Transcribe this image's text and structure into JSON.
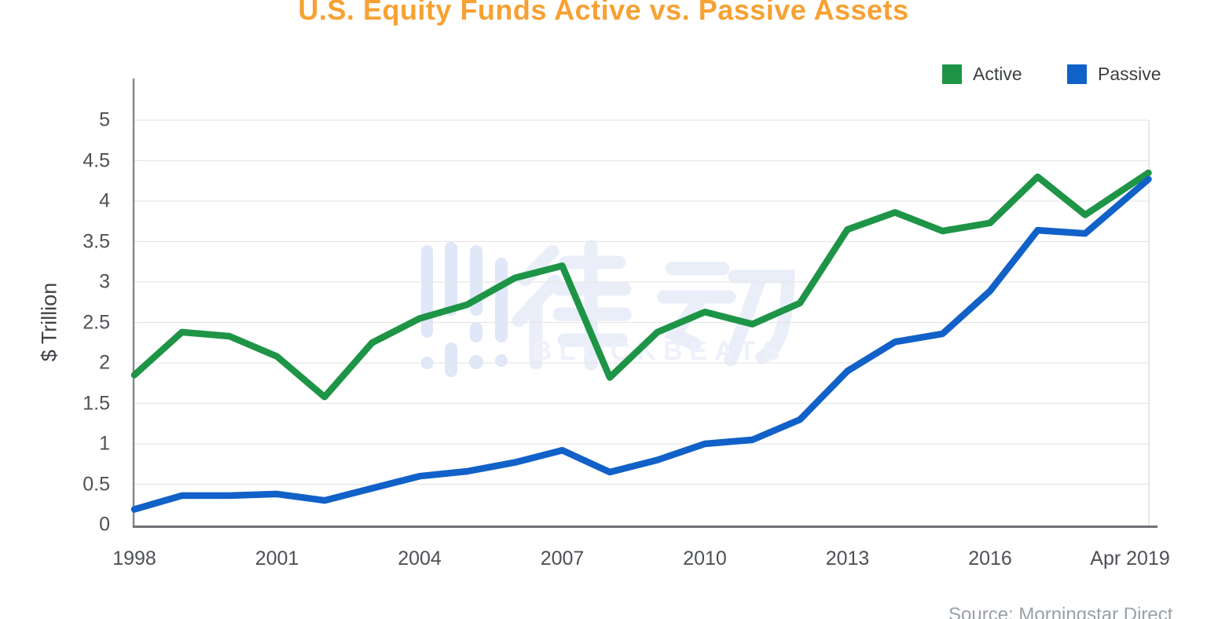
{
  "title": {
    "text": "U.S. Equity Funds Active vs. Passive Assets",
    "color": "#F7A132"
  },
  "legend": {
    "items": [
      {
        "label": "Active",
        "color": "#1E9446"
      },
      {
        "label": "Passive",
        "color": "#1161C8"
      }
    ]
  },
  "watermark": {
    "cjk_text": "律动",
    "latin_text": "BLOCKBEATS",
    "color": "#E9EEF9"
  },
  "source_note": "Source: Morningstar Direct",
  "chart_data": {
    "type": "line",
    "title": "U.S. Equity Funds Active vs. Passive Assets",
    "xlabel": "",
    "ylabel": "$ Trillion",
    "ylim": [
      0,
      5
    ],
    "yticks": [
      0,
      0.5,
      1,
      1.5,
      2,
      2.5,
      3,
      3.5,
      4,
      4.5,
      5
    ],
    "grid": true,
    "legend_position": "top-right",
    "x": [
      1998,
      1999,
      2000,
      2001,
      2002,
      2003,
      2004,
      2005,
      2006,
      2007,
      2008,
      2009,
      2010,
      2011,
      2012,
      2013,
      2014,
      2015,
      2016,
      2017,
      2018,
      2019.33
    ],
    "x_display": [
      "1998",
      "1999",
      "2000",
      "2001",
      "2002",
      "2003",
      "2004",
      "2005",
      "2006",
      "2007",
      "2008",
      "2009",
      "2010",
      "2011",
      "2012",
      "2013",
      "2014",
      "2015",
      "2016",
      "2017",
      "2018",
      "Apr 2019"
    ],
    "xticks": [
      {
        "label": "1998",
        "year": 1998
      },
      {
        "label": "2001",
        "year": 2001
      },
      {
        "label": "2004",
        "year": 2004
      },
      {
        "label": "2007",
        "year": 2007
      },
      {
        "label": "2010",
        "year": 2010
      },
      {
        "label": "2013",
        "year": 2013
      },
      {
        "label": "2016",
        "year": 2016
      },
      {
        "label": "Apr 2019",
        "year": 2019.33
      }
    ],
    "series": [
      {
        "name": "Active",
        "color": "#1E9446",
        "values": [
          1.85,
          2.38,
          2.33,
          2.08,
          1.58,
          2.25,
          2.55,
          2.72,
          3.05,
          3.2,
          1.82,
          2.38,
          2.63,
          2.48,
          2.74,
          3.65,
          3.86,
          3.63,
          3.73,
          4.3,
          3.83,
          4.35
        ]
      },
      {
        "name": "Passive",
        "color": "#1161C8",
        "values": [
          0.19,
          0.36,
          0.36,
          0.38,
          0.3,
          0.45,
          0.6,
          0.66,
          0.77,
          0.92,
          0.65,
          0.8,
          1.0,
          1.05,
          1.3,
          1.9,
          2.26,
          2.36,
          2.89,
          3.64,
          3.6,
          4.27
        ]
      }
    ]
  }
}
